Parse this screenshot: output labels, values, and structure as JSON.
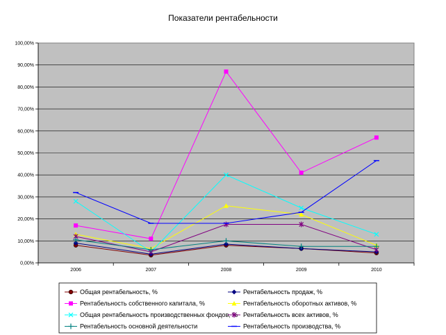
{
  "chart_data": {
    "type": "line",
    "title": "Показатели рентабельности",
    "xlabel": "",
    "ylabel": "",
    "categories": [
      "2006",
      "2007",
      "2008",
      "2009",
      "2010"
    ],
    "ylim": [
      0,
      100
    ],
    "y_ticks": [
      "0,00%",
      "10,00%",
      "20,00%",
      "30,00%",
      "40,00%",
      "50,00%",
      "60,00%",
      "70,00%",
      "80,00%",
      "90,00%",
      "100,00%"
    ],
    "grid": "horizontal",
    "legend_position": "bottom",
    "plot_background": "#c0c0c0",
    "series": [
      {
        "name": "Общая рентабельность, %",
        "values": [
          8,
          3.5,
          8,
          6.5,
          4.5
        ],
        "color": "#800000",
        "marker": "circle"
      },
      {
        "name": "Рентабельность продаж, %",
        "values": [
          9,
          4,
          8.5,
          6.5,
          5
        ],
        "color": "#000080",
        "marker": "diamond"
      },
      {
        "name": "Рентабельность собственного капитала, %",
        "values": [
          17,
          11,
          87,
          41,
          57
        ],
        "color": "#ff00ff",
        "marker": "square"
      },
      {
        "name": "Рентабельность оборотных активов, %",
        "values": [
          13,
          6.5,
          26,
          22,
          8
        ],
        "color": "#ffff00",
        "marker": "triangle"
      },
      {
        "name": "Общая рентабельность производственных фондов, %",
        "values": [
          28,
          5,
          40,
          25,
          13
        ],
        "color": "#00ffff",
        "marker": "x"
      },
      {
        "name": "Рентабельность всех активов, %",
        "values": [
          12,
          5,
          17.5,
          17.5,
          6
        ],
        "color": "#800080",
        "marker": "star"
      },
      {
        "name": "Рентабельность основной деятельности",
        "values": [
          10.5,
          6,
          10,
          7.5,
          7.5
        ],
        "color": "#008080",
        "marker": "plus"
      },
      {
        "name": "Рентабельность производства, %",
        "values": [
          32,
          18,
          18,
          23,
          46.5
        ],
        "color": "#0000ff",
        "marker": "dash"
      }
    ]
  }
}
